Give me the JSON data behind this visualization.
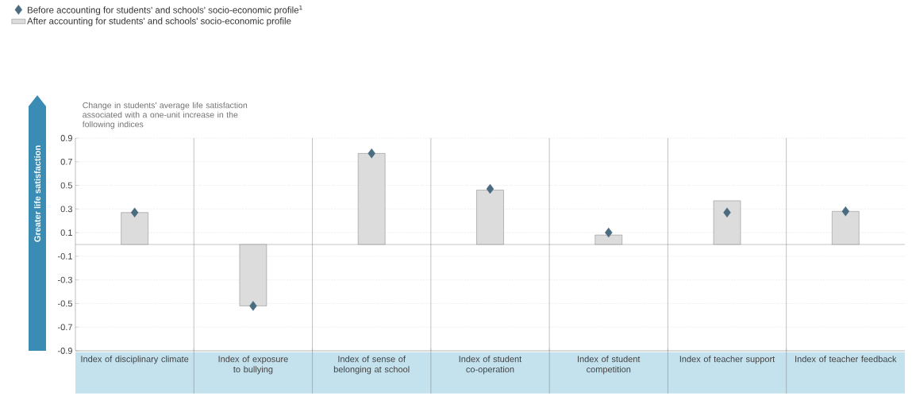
{
  "chart_data": {
    "type": "bar",
    "ylabel": "Change in students' average life satisfaction associated with a one-unit increase in the following indices",
    "annotations": [
      "Greater life satisfaction"
    ],
    "categories": [
      "Index of disciplinary climate",
      "Index of exposure to bullying",
      "Index of sense of belonging at school",
      "Index of student co-operation",
      "Index of student competition",
      "Index of teacher support",
      "Index of teacher feedback"
    ],
    "series": [
      {
        "name": "Before accounting for students' and schools' socio-economic profile$^{1}$",
        "type": "scatter",
        "marker": "diamond",
        "color": "#4a6b80",
        "values": [
          0.27,
          -0.52,
          0.77,
          0.47,
          0.1,
          0.27,
          0.28
        ]
      },
      {
        "name": "After accounting for students' and schools' socio-economic profile",
        "color": "#dcdcdc",
        "values": [
          0.27,
          -0.52,
          0.77,
          0.46,
          0.08,
          0.37,
          0.28
        ]
      }
    ],
    "ylim": [
      -0.9,
      0.9
    ],
    "yticks": [
      -0.9,
      -0.7,
      -0.5,
      -0.3,
      -0.1,
      0.1,
      0.3,
      0.5,
      0.7,
      0.9
    ],
    "grid": "y",
    "legend": "top left"
  }
}
